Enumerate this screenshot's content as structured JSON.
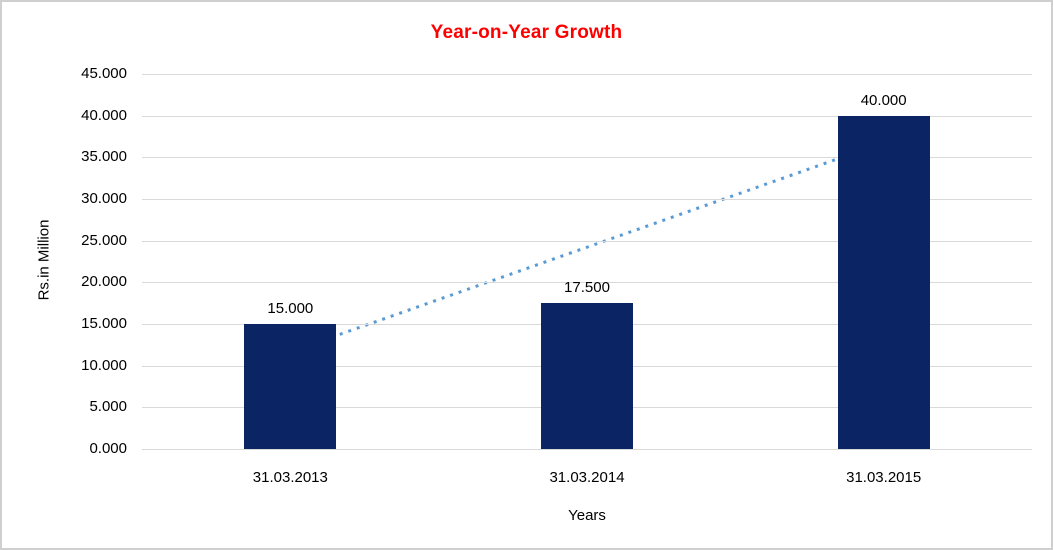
{
  "chart": {
    "title": "Year-on-Year Growth",
    "title_color": "#ff0000",
    "y_axis_title": "Rs.in Million",
    "x_axis_title": "Years"
  },
  "chart_data": {
    "type": "bar",
    "title": "Year-on-Year Growth",
    "xlabel": "Years",
    "ylabel": "Rs.in Million",
    "categories": [
      "31.03.2013",
      "31.03.2014",
      "31.03.2015"
    ],
    "values": [
      15.0,
      17.5,
      40.0
    ],
    "value_labels": [
      "15.000",
      "17.500",
      "40.000"
    ],
    "ylim": [
      0,
      45
    ],
    "y_ticks": [
      {
        "value": 0,
        "label": "0.000"
      },
      {
        "value": 5,
        "label": "5.000"
      },
      {
        "value": 10,
        "label": "10.000"
      },
      {
        "value": 15,
        "label": "15.000"
      },
      {
        "value": 20,
        "label": "20.000"
      },
      {
        "value": 25,
        "label": "25.000"
      },
      {
        "value": 30,
        "label": "30.000"
      },
      {
        "value": 35,
        "label": "35.000"
      },
      {
        "value": 40,
        "label": "40.000"
      },
      {
        "value": 45,
        "label": "45.000"
      }
    ],
    "grid": true,
    "legend": "none",
    "bar_color": "#0b2463",
    "gridline_color": "#d9d9d9",
    "trendline": {
      "style": "dotted",
      "color": "#5b9bd5",
      "x1_frac": 0.165,
      "y1_value": 11.6,
      "x2_frac": 0.829,
      "y2_value": 36.6
    }
  }
}
